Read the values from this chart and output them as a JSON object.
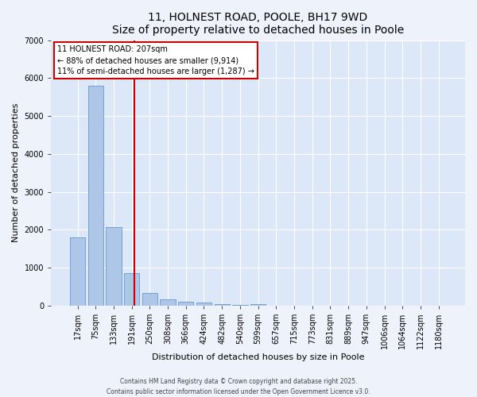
{
  "title1": "11, HOLNEST ROAD, POOLE, BH17 9WD",
  "title2": "Size of property relative to detached houses in Poole",
  "xlabel": "Distribution of detached houses by size in Poole",
  "ylabel": "Number of detached properties",
  "categories": [
    "17sqm",
    "75sqm",
    "133sqm",
    "191sqm",
    "250sqm",
    "308sqm",
    "366sqm",
    "424sqm",
    "482sqm",
    "540sqm",
    "599sqm",
    "657sqm",
    "715sqm",
    "773sqm",
    "831sqm",
    "889sqm",
    "947sqm",
    "1006sqm",
    "1064sqm",
    "1122sqm",
    "1180sqm"
  ],
  "values": [
    1800,
    5800,
    2080,
    850,
    335,
    175,
    100,
    80,
    50,
    25,
    50,
    0,
    0,
    0,
    0,
    0,
    0,
    0,
    0,
    0,
    0
  ],
  "bar_color": "#aec6e8",
  "bar_edge_color": "#6699cc",
  "vline_x_index": 3.15,
  "vline_color": "#cc0000",
  "annotation_text": "11 HOLNEST ROAD: 207sqm\n← 88% of detached houses are smaller (9,914)\n11% of semi-detached houses are larger (1,287) →",
  "annotation_box_facecolor": "#ffffff",
  "annotation_box_edgecolor": "#cc0000",
  "ylim": [
    0,
    7000
  ],
  "yticks": [
    0,
    1000,
    2000,
    3000,
    4000,
    5000,
    6000,
    7000
  ],
  "plot_bg_color": "#dce8f8",
  "fig_bg_color": "#eef2fb",
  "grid_color": "#ffffff",
  "title_fontsize": 10,
  "axis_label_fontsize": 8,
  "tick_fontsize": 7,
  "footer1": "Contains HM Land Registry data © Crown copyright and database right 2025.",
  "footer2": "Contains public sector information licensed under the Open Government Licence v3.0."
}
